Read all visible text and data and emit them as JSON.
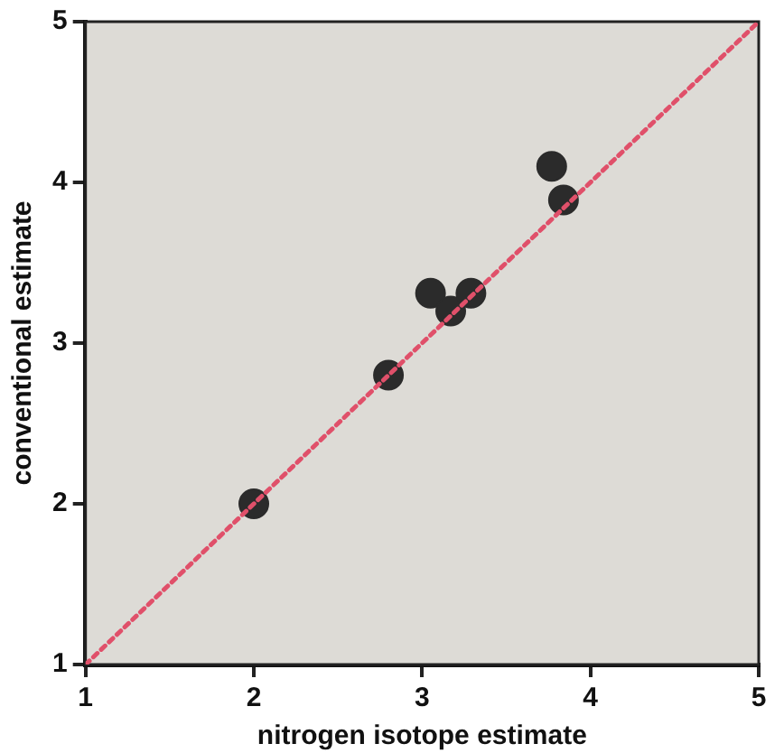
{
  "chart_data": {
    "type": "scatter",
    "xlabel": "nitrogen isotope estimate",
    "ylabel": "conventional estimate",
    "xlim": [
      1,
      5
    ],
    "ylim": [
      1,
      5
    ],
    "xticks": [
      1,
      2,
      3,
      4,
      5
    ],
    "yticks": [
      1,
      2,
      3,
      4,
      5
    ],
    "grid": false,
    "legend": false,
    "marker": "circle",
    "series": [
      {
        "type": "line",
        "color": "#e0506a",
        "line_style": "dotted",
        "marker": "none",
        "x": [
          1,
          5
        ],
        "values": [
          1,
          5
        ]
      },
      {
        "color": "#2b2b2b",
        "x": [
          2,
          2.8,
          3.05,
          3.17,
          3.29,
          3.77,
          3.84
        ],
        "values": [
          2,
          2.8,
          3.31,
          3.2,
          3.31,
          4.1,
          3.89
        ]
      }
    ]
  }
}
